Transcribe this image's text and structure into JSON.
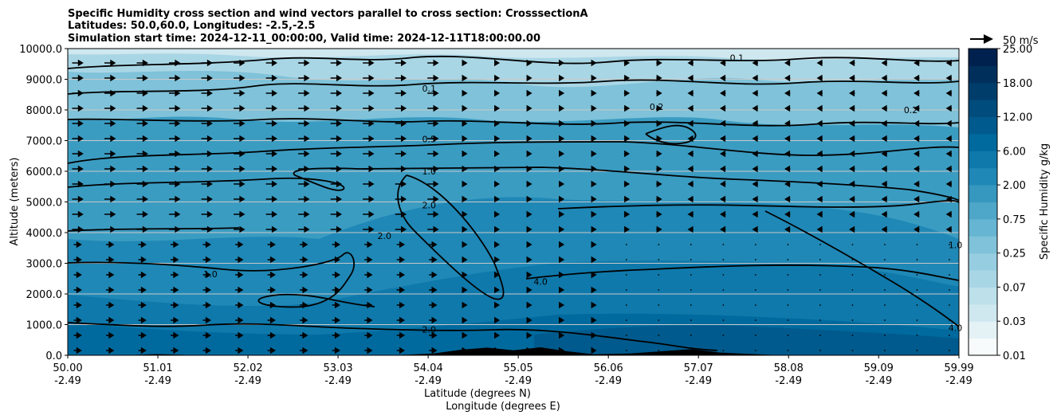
{
  "chart_data": {
    "type": "heatmap",
    "title_lines": [
      "Specific Humidity cross section and wind vectors parallel to cross section: CrosssectionA",
      "Latitudes: 50.0,60.0, Longitudes: -2.5,-2.5",
      "Simulation start time: 2024-12-11_00:00:00, Valid time: 2024-12-11T18:00:00.00"
    ],
    "ylabel": "Altitude (meters)",
    "xlabel_lines": [
      "Latitude (degrees N)",
      "Longitude (degrees E)"
    ],
    "ylim": [
      0,
      10000
    ],
    "y_ticks": [
      "0.0",
      "1000.0",
      "2000.0",
      "3000.0",
      "4000.0",
      "5000.0",
      "6000.0",
      "7000.0",
      "8000.0",
      "9000.0",
      "10000.0"
    ],
    "x_ticks": [
      {
        "lat": "50.00",
        "lon": "-2.49"
      },
      {
        "lat": "51.01",
        "lon": "-2.49"
      },
      {
        "lat": "52.02",
        "lon": "-2.49"
      },
      {
        "lat": "53.03",
        "lon": "-2.49"
      },
      {
        "lat": "54.04",
        "lon": "-2.49"
      },
      {
        "lat": "55.05",
        "lon": "-2.49"
      },
      {
        "lat": "56.06",
        "lon": "-2.49"
      },
      {
        "lat": "57.07",
        "lon": "-2.49"
      },
      {
        "lat": "58.08",
        "lon": "-2.49"
      },
      {
        "lat": "59.09",
        "lon": "-2.49"
      },
      {
        "lat": "59.99",
        "lon": "-2.49"
      }
    ],
    "grid": "horizontal",
    "colorbar": {
      "label": "Specific Humidity g/kg",
      "levels": [
        "0.01",
        "0.03",
        "0.07",
        "0.25",
        "0.75",
        "2.00",
        "6.00",
        "12.00",
        "18.00",
        "25.00"
      ],
      "colors": [
        "#f7fbfc",
        "#e4f1f5",
        "#cfe7ef",
        "#bde0ea",
        "#a9d6e5",
        "#96cde0",
        "#7fc2d9",
        "#66b5d2",
        "#4ea6c8",
        "#3697bf",
        "#1f88b6",
        "#0f79ab",
        "#006a9e",
        "#005a8d",
        "#004c7c",
        "#003d6b",
        "#002f5c",
        "#00214d"
      ]
    },
    "wind_key": "50 m/s",
    "contour_labels": [
      {
        "text": "0.1",
        "lat": 54.05,
        "alt": 8700
      },
      {
        "text": "0.2",
        "lat": 56.6,
        "alt": 8100
      },
      {
        "text": "0.5",
        "lat": 54.05,
        "alt": 7050
      },
      {
        "text": "1.0",
        "lat": 54.05,
        "alt": 6000
      },
      {
        "text": "2.0",
        "lat": 54.05,
        "alt": 4900
      },
      {
        "text": "2.0",
        "lat": 54.05,
        "alt": 850
      },
      {
        "text": "4.0",
        "lat": 55.3,
        "alt": 2400
      },
      {
        "text": "2.0",
        "lat": 53.55,
        "alt": 3900
      },
      {
        "text": "1.0",
        "lat": 51.6,
        "alt": 2650
      },
      {
        "text": "1.0",
        "lat": 59.95,
        "alt": 3600
      },
      {
        "text": "4.0",
        "lat": 59.95,
        "alt": 900
      },
      {
        "text": "0.1",
        "lat": 57.5,
        "alt": 9700
      },
      {
        "text": "0.2",
        "lat": 59.45,
        "alt": 8000
      }
    ],
    "ground_profile": {
      "lat": [
        50.0,
        50.6,
        51.0,
        51.5,
        52.0,
        52.6,
        53.0,
        53.5,
        53.8,
        54.1,
        54.4,
        54.7,
        55.0,
        55.3,
        55.6,
        55.9,
        56.3,
        56.7,
        57.0,
        57.3,
        57.6,
        58.0,
        59.99
      ],
      "alt": [
        0,
        0,
        40,
        0,
        0,
        0,
        0,
        0,
        20,
        60,
        180,
        250,
        160,
        260,
        130,
        30,
        60,
        140,
        200,
        90,
        50,
        0,
        0
      ]
    }
  }
}
